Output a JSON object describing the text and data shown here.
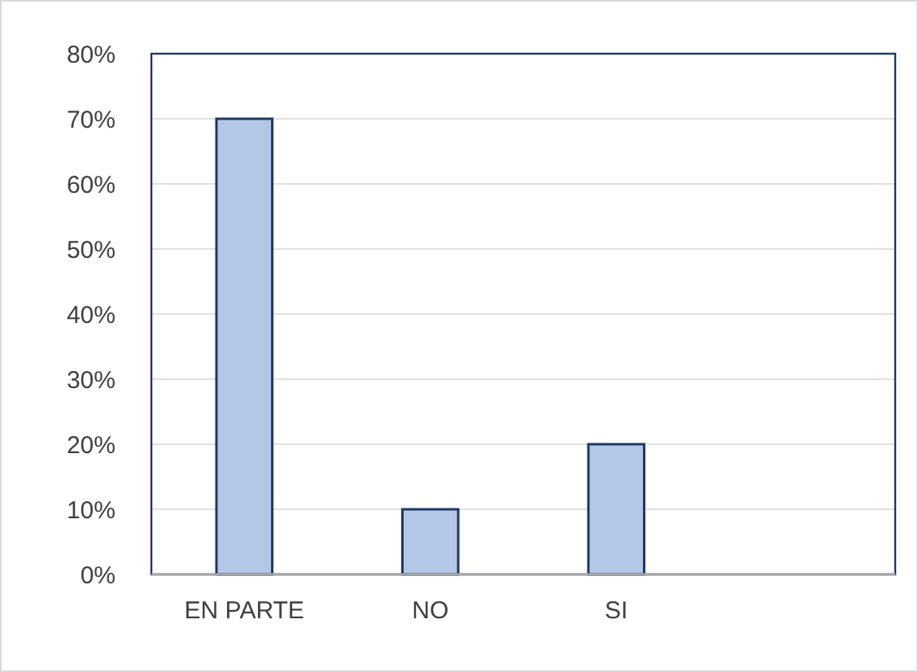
{
  "chart_data": {
    "type": "bar",
    "categories": [
      "EN PARTE",
      "NO",
      "SI",
      null
    ],
    "values": [
      70,
      10,
      20,
      null
    ],
    "color": "#b4c7e7",
    "ylim": [
      0,
      80
    ],
    "yticks": [
      {
        "value": 0,
        "label": "0%"
      },
      {
        "value": 10,
        "label": "10%"
      },
      {
        "value": 20,
        "label": "20%"
      },
      {
        "value": 30,
        "label": "30%"
      },
      {
        "value": 40,
        "label": "40%"
      },
      {
        "value": 50,
        "label": "50%"
      },
      {
        "value": 60,
        "label": "60%"
      },
      {
        "value": 70,
        "label": "70%"
      },
      {
        "value": 80,
        "label": "80%"
      }
    ],
    "grid": "y"
  }
}
